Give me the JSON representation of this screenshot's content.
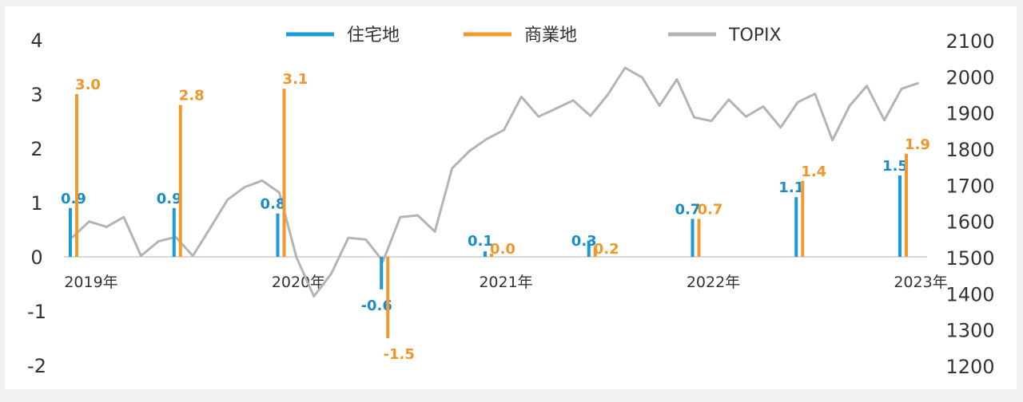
{
  "chart_data": {
    "type": "bar",
    "title": "",
    "legend": {
      "placement": "top-center",
      "items": [
        {
          "name": "住宅地",
          "color": "#1a9bd7",
          "kind": "bar"
        },
        {
          "name": "商業地",
          "color": "#f29a2e",
          "kind": "bar"
        },
        {
          "name": "TOPIX",
          "color": "#b4b4b4",
          "kind": "line"
        }
      ]
    },
    "left_axis": {
      "ylim": [
        -2,
        4
      ],
      "ticks": [
        "4",
        "3",
        "2",
        "1",
        "0",
        "-1",
        "-2"
      ],
      "tick_values": [
        4,
        3,
        2,
        1,
        0,
        -1,
        -2
      ]
    },
    "right_axis": {
      "ylim": [
        1200,
        2100
      ],
      "ticks": [
        "2100",
        "2000",
        "1900",
        "1800",
        "1700",
        "1600",
        "1500",
        "1400",
        "1300",
        "1200"
      ],
      "tick_values": [
        2100,
        2000,
        1900,
        1800,
        1700,
        1600,
        1500,
        1400,
        1300,
        1200
      ]
    },
    "x_axis": {
      "range": [
        2019.0,
        2023.0
      ],
      "year_labels": [
        {
          "x": 2019.0,
          "label": "2019年"
        },
        {
          "x": 2020.0,
          "label": "2020年"
        },
        {
          "x": 2021.0,
          "label": "2021年"
        },
        {
          "x": 2022.0,
          "label": "2022年"
        },
        {
          "x": 2023.0,
          "label": "2023年"
        }
      ]
    },
    "series": [
      {
        "name": "住宅地",
        "axis": "left",
        "color": "#1a9bd7",
        "points": [
          {
            "x": 2019.0,
            "value": 0.9,
            "label": "0.9"
          },
          {
            "x": 2019.5,
            "value": 0.9,
            "label": "0.9"
          },
          {
            "x": 2020.0,
            "value": 0.8,
            "label": "0.8"
          },
          {
            "x": 2020.5,
            "value": -0.6,
            "label": "-0.6"
          },
          {
            "x": 2021.0,
            "value": 0.1,
            "label": "0.1"
          },
          {
            "x": 2021.5,
            "value": 0.3,
            "label": "0.3"
          },
          {
            "x": 2022.0,
            "value": 0.7,
            "label": "0.7"
          },
          {
            "x": 2022.5,
            "value": 1.1,
            "label": "1.1"
          },
          {
            "x": 2023.0,
            "value": 1.5,
            "label": "1.5"
          }
        ]
      },
      {
        "name": "商業地",
        "axis": "left",
        "color": "#f29a2e",
        "points": [
          {
            "x": 2019.0,
            "value": 3.0,
            "label": "3.0"
          },
          {
            "x": 2019.5,
            "value": 2.8,
            "label": "2.8"
          },
          {
            "x": 2020.0,
            "value": 3.1,
            "label": "3.1"
          },
          {
            "x": 2020.5,
            "value": -1.5,
            "label": "-1.5"
          },
          {
            "x": 2021.0,
            "value": 0.0,
            "label": "0.0"
          },
          {
            "x": 2021.5,
            "value": 0.2,
            "label": "0.2"
          },
          {
            "x": 2022.0,
            "value": 0.7,
            "label": "0.7"
          },
          {
            "x": 2022.5,
            "value": 1.4,
            "label": "1.4"
          },
          {
            "x": 2023.0,
            "value": 1.9,
            "label": "1.9"
          }
        ]
      },
      {
        "name": "TOPIX",
        "axis": "right",
        "color": "#b4b4b4",
        "type": "line",
        "x": [
          2019.0,
          2019.083,
          2019.167,
          2019.25,
          2019.333,
          2019.417,
          2019.5,
          2019.583,
          2019.667,
          2019.75,
          2019.833,
          2019.917,
          2020.0,
          2020.083,
          2020.167,
          2020.25,
          2020.333,
          2020.417,
          2020.5,
          2020.583,
          2020.667,
          2020.75,
          2020.833,
          2020.917,
          2021.0,
          2021.083,
          2021.167,
          2021.25,
          2021.333,
          2021.417,
          2021.5,
          2021.583,
          2021.667,
          2021.75,
          2021.833,
          2021.917,
          2022.0,
          2022.083,
          2022.167,
          2022.25,
          2022.333,
          2022.417,
          2022.5,
          2022.583,
          2022.667,
          2022.75,
          2022.833,
          2022.917,
          2023.0,
          2023.083
        ],
        "values": [
          1555,
          1600,
          1585,
          1612,
          1505,
          1545,
          1557,
          1505,
          1582,
          1660,
          1695,
          1713,
          1680,
          1500,
          1393,
          1455,
          1555,
          1550,
          1490,
          1612,
          1617,
          1572,
          1747,
          1795,
          1828,
          1853,
          1945,
          1890,
          1912,
          1935,
          1892,
          1950,
          2025,
          1998,
          1920,
          1993,
          1888,
          1878,
          1937,
          1890,
          1918,
          1860,
          1930,
          1953,
          1825,
          1920,
          1975,
          1880,
          1967,
          1983
        ]
      }
    ]
  }
}
